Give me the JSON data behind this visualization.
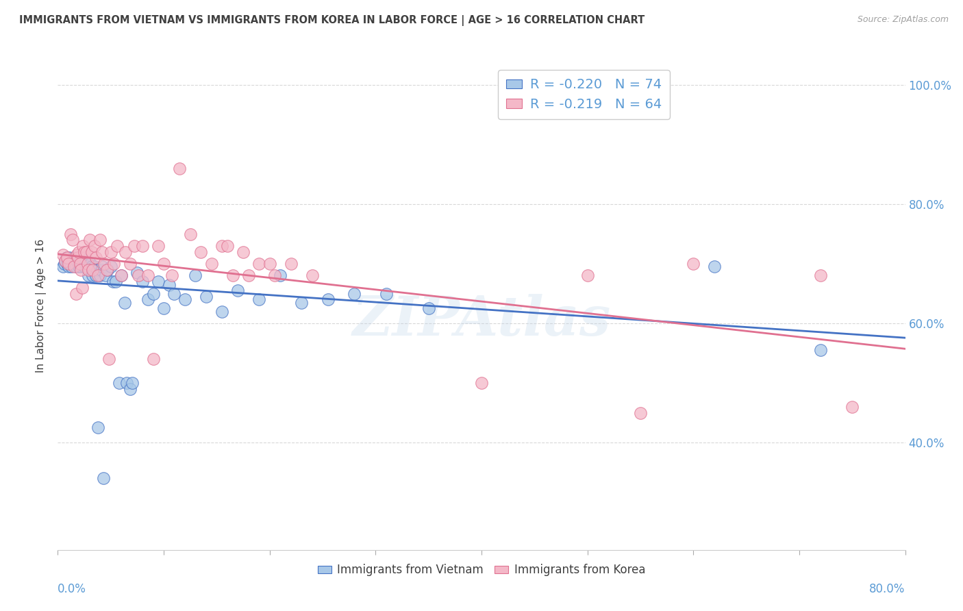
{
  "title": "IMMIGRANTS FROM VIETNAM VS IMMIGRANTS FROM KOREA IN LABOR FORCE | AGE > 16 CORRELATION CHART",
  "source": "Source: ZipAtlas.com",
  "ylabel": "In Labor Force | Age > 16",
  "x_min": 0.0,
  "x_max": 0.8,
  "y_min": 0.22,
  "y_max": 1.04,
  "y_ticks": [
    0.4,
    0.6,
    0.8,
    1.0
  ],
  "y_tick_labels": [
    "40.0%",
    "60.0%",
    "80.0%",
    "100.0%"
  ],
  "x_ticks": [
    0.0,
    0.1,
    0.2,
    0.3,
    0.4,
    0.5,
    0.6,
    0.7,
    0.8
  ],
  "legend_viet_r": "-0.220",
  "legend_viet_n": "74",
  "legend_korea_r": "-0.219",
  "legend_korea_n": "64",
  "color_viet_fill": "#a8c8e8",
  "color_korea_fill": "#f4b8c8",
  "color_viet_edge": "#4472c4",
  "color_korea_edge": "#e07090",
  "color_viet_line": "#4472c4",
  "color_korea_line": "#e07090",
  "color_title": "#404040",
  "color_tick_label": "#5b9bd5",
  "color_source": "#a0a0a0",
  "color_grid": "#d8d8d8",
  "watermark": "ZIPAtlas",
  "viet_x": [
    0.005,
    0.006,
    0.007,
    0.008,
    0.009,
    0.01,
    0.01,
    0.011,
    0.012,
    0.013,
    0.014,
    0.015,
    0.016,
    0.017,
    0.018,
    0.019,
    0.02,
    0.02,
    0.021,
    0.022,
    0.022,
    0.023,
    0.024,
    0.025,
    0.026,
    0.027,
    0.028,
    0.029,
    0.03,
    0.031,
    0.032,
    0.033,
    0.034,
    0.035,
    0.036,
    0.037,
    0.038,
    0.04,
    0.041,
    0.042,
    0.043,
    0.045,
    0.047,
    0.05,
    0.052,
    0.055,
    0.058,
    0.06,
    0.063,
    0.065,
    0.068,
    0.07,
    0.075,
    0.08,
    0.085,
    0.09,
    0.095,
    0.1,
    0.105,
    0.11,
    0.12,
    0.13,
    0.14,
    0.155,
    0.17,
    0.19,
    0.21,
    0.23,
    0.255,
    0.28,
    0.31,
    0.35,
    0.62,
    0.72
  ],
  "viet_y": [
    0.695,
    0.7,
    0.705,
    0.71,
    0.7,
    0.695,
    0.705,
    0.71,
    0.7,
    0.695,
    0.705,
    0.71,
    0.7,
    0.695,
    0.705,
    0.71,
    0.695,
    0.7,
    0.705,
    0.71,
    0.695,
    0.7,
    0.705,
    0.695,
    0.7,
    0.705,
    0.695,
    0.68,
    0.69,
    0.7,
    0.695,
    0.68,
    0.69,
    0.695,
    0.68,
    0.69,
    0.425,
    0.68,
    0.69,
    0.695,
    0.34,
    0.68,
    0.69,
    0.695,
    0.67,
    0.67,
    0.5,
    0.68,
    0.635,
    0.5,
    0.49,
    0.5,
    0.685,
    0.67,
    0.64,
    0.65,
    0.67,
    0.625,
    0.665,
    0.65,
    0.64,
    0.68,
    0.645,
    0.62,
    0.655,
    0.64,
    0.68,
    0.635,
    0.64,
    0.65,
    0.65,
    0.625,
    0.695,
    0.555
  ],
  "korea_x": [
    0.005,
    0.007,
    0.009,
    0.01,
    0.012,
    0.014,
    0.015,
    0.017,
    0.018,
    0.019,
    0.02,
    0.021,
    0.022,
    0.023,
    0.024,
    0.025,
    0.027,
    0.028,
    0.029,
    0.03,
    0.032,
    0.033,
    0.035,
    0.036,
    0.038,
    0.04,
    0.042,
    0.044,
    0.046,
    0.048,
    0.05,
    0.053,
    0.056,
    0.06,
    0.064,
    0.068,
    0.072,
    0.076,
    0.08,
    0.085,
    0.09,
    0.095,
    0.1,
    0.108,
    0.115,
    0.125,
    0.135,
    0.145,
    0.155,
    0.165,
    0.175,
    0.19,
    0.205,
    0.22,
    0.24,
    0.16,
    0.18,
    0.2,
    0.4,
    0.5,
    0.55,
    0.6,
    0.72,
    0.75
  ],
  "korea_y": [
    0.715,
    0.705,
    0.71,
    0.7,
    0.75,
    0.74,
    0.695,
    0.65,
    0.715,
    0.71,
    0.72,
    0.7,
    0.69,
    0.66,
    0.73,
    0.72,
    0.72,
    0.7,
    0.69,
    0.74,
    0.72,
    0.69,
    0.73,
    0.71,
    0.68,
    0.74,
    0.72,
    0.7,
    0.69,
    0.54,
    0.72,
    0.7,
    0.73,
    0.68,
    0.72,
    0.7,
    0.73,
    0.68,
    0.73,
    0.68,
    0.54,
    0.73,
    0.7,
    0.68,
    0.86,
    0.75,
    0.72,
    0.7,
    0.73,
    0.68,
    0.72,
    0.7,
    0.68,
    0.7,
    0.68,
    0.73,
    0.68,
    0.7,
    0.5,
    0.68,
    0.45,
    0.7,
    0.68,
    0.46
  ]
}
